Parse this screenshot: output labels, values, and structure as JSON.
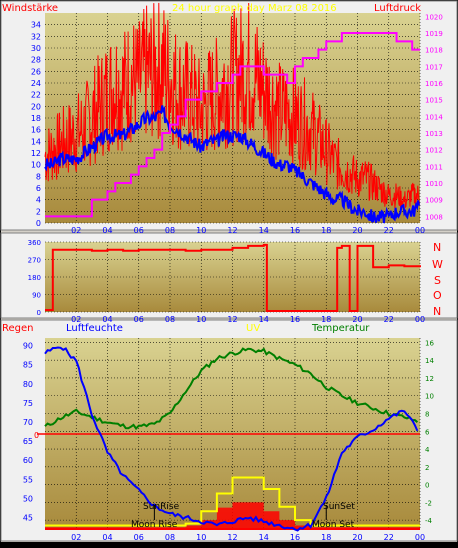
{
  "colors": {
    "frame_bg": "#d4d0c8",
    "plot_bg_top": "#d9d291",
    "plot_bg_bottom": "#a88a3c",
    "grid": "#000000",
    "wind_speed": "#ff0000",
    "wind_avg": "#0000ff",
    "pressure": "#ff00ff",
    "direction": "#ff0000",
    "humidity": "#0000ff",
    "temperature": "#007f00",
    "uv": "#ffff00",
    "solar": "#ff0000",
    "rain": "#ff0000",
    "label_left_top": "#ff0000",
    "label_uv": "#ffff00",
    "label_temp": "#007f00",
    "label_hum": "#0000ff",
    "axis_left": "#0000ff",
    "axis_right": "#007f00",
    "axis_right_top": "#ff00ff"
  },
  "header": {
    "title": "24 hour graph day   Marz 08 2016",
    "left_label": "Windstärke",
    "right_label": "Luftdruck"
  },
  "xticks": [
    "02",
    "04",
    "06",
    "08",
    "10",
    "12",
    "14",
    "16",
    "18",
    "20",
    "22",
    "00"
  ],
  "panel_wind": {
    "y_left_ticks": [
      "0",
      "2",
      "4",
      "6",
      "8",
      "10",
      "12",
      "14",
      "16",
      "18",
      "20",
      "22",
      "24",
      "26",
      "28",
      "30",
      "32",
      "34"
    ],
    "y_right_ticks": [
      "1008",
      "1009",
      "1010",
      "1011",
      "1012",
      "1013",
      "1014",
      "1015",
      "1016",
      "1017",
      "1018",
      "1019",
      "1020"
    ]
  },
  "panel_direction": {
    "y_left_ticks": [
      "0",
      "90",
      "180",
      "270",
      "360"
    ],
    "right_labels": [
      "N",
      "W",
      "S",
      "O",
      "N"
    ]
  },
  "panel_bottom": {
    "labels": {
      "rain": "Regen",
      "humidity": "Luftfeuchte",
      "uv": "UV",
      "temperature": "Temperatur"
    },
    "y_left_ticks": [
      "45",
      "50",
      "55",
      "60",
      "65",
      "70",
      "75",
      "80",
      "85",
      "90"
    ],
    "rain_zero": "0",
    "y_right_ticks": [
      "-4",
      "-2",
      "0",
      "2",
      "4",
      "6",
      "8",
      "10",
      "12",
      "14",
      "16"
    ],
    "annotations": {
      "sunrise": "SunRise",
      "moonrise": "Moon Rise",
      "sunset": "SunSet",
      "moonset": "Moon Set"
    }
  },
  "chart_data": [
    {
      "type": "line",
      "panel": "wind",
      "x_hours": [
        0,
        0.5,
        1,
        1.5,
        2,
        2.5,
        3,
        3.5,
        4,
        4.5,
        5,
        5.5,
        6,
        6.5,
        7,
        7.5,
        8,
        8.5,
        9,
        9.5,
        10,
        10.5,
        11,
        11.5,
        12,
        12.5,
        13,
        13.5,
        14,
        14.5,
        15,
        15.5,
        16,
        16.5,
        17,
        17.5,
        18,
        18.5,
        19,
        19.5,
        20,
        20.5,
        21,
        21.5,
        22,
        22.5,
        23,
        23.5,
        24
      ],
      "series": [
        {
          "name": "Windstärke",
          "axis": "left",
          "values": [
            12,
            13,
            14,
            15,
            16,
            17,
            19,
            21,
            23,
            25,
            24,
            26,
            25,
            27,
            27,
            28,
            26,
            24,
            23,
            22,
            20,
            22,
            23,
            25,
            26,
            27,
            28,
            26,
            24,
            22,
            20,
            20,
            19,
            18,
            17,
            15,
            13,
            11,
            10,
            9,
            8,
            8,
            7,
            6,
            5,
            5,
            4,
            5,
            5
          ]
        },
        {
          "name": "Windstärke Mittel",
          "axis": "left",
          "values": [
            10,
            10,
            11,
            11,
            11,
            12,
            13,
            14,
            15,
            15,
            15,
            16,
            17,
            18,
            18,
            19,
            17,
            16,
            15,
            14,
            13,
            14,
            14,
            15,
            15,
            15,
            14,
            13,
            12,
            11,
            10,
            10,
            9,
            8,
            7,
            6,
            5,
            4,
            4,
            3,
            2,
            2,
            1,
            1,
            1,
            2,
            2,
            2,
            3
          ]
        },
        {
          "name": "Luftdruck",
          "axis": "right",
          "values": [
            1008.2,
            1008.2,
            1008.2,
            1008.2,
            1008.2,
            1008.2,
            1008.2,
            1008.8,
            1009.2,
            1009.4,
            1009.8,
            1010.2,
            1010.6,
            1011.2,
            1011.6,
            1012.2,
            1012.8,
            1013.6,
            1014.2,
            1014.8,
            1015.2,
            1015.4,
            1015.6,
            1015.9,
            1016.2,
            1016.6,
            1016.9,
            1017.0,
            1016.8,
            1016.6,
            1016.5,
            1016.3,
            1016.1,
            1016.8,
            1017.3,
            1017.6,
            1018.0,
            1018.4,
            1018.7,
            1018.8,
            1019.0,
            1019.1,
            1019.1,
            1019.0,
            1018.9,
            1018.8,
            1018.6,
            1018.4,
            1018.2
          ]
        }
      ],
      "ylim_left": [
        0,
        36
      ],
      "ylim_right": [
        1007.6,
        1020.2
      ]
    },
    {
      "type": "line",
      "panel": "direction",
      "x_hours": [
        0,
        0.5,
        1,
        2,
        3,
        4,
        5,
        6,
        7,
        8,
        9,
        10,
        11,
        12,
        13,
        14,
        14.2,
        15,
        16,
        17,
        18,
        18.7,
        19,
        19.5,
        20,
        21,
        22,
        23,
        24
      ],
      "series": [
        {
          "name": "Windrichtung",
          "values": [
            10,
            320,
            320,
            320,
            315,
            320,
            315,
            320,
            320,
            320,
            315,
            320,
            320,
            330,
            340,
            345,
            5,
            5,
            5,
            5,
            5,
            330,
            340,
            5,
            340,
            230,
            240,
            235,
            230
          ]
        }
      ],
      "ylim": [
        0,
        360
      ]
    },
    {
      "type": "line",
      "panel": "bottom",
      "x_hours": [
        0,
        1,
        2,
        3,
        4,
        5,
        6,
        7,
        8,
        9,
        10,
        11,
        12,
        13,
        14,
        15,
        16,
        17,
        18,
        19,
        20,
        21,
        22,
        23,
        24
      ],
      "series": [
        {
          "name": "Luftfeuchte",
          "axis": "left",
          "values": [
            88,
            90,
            86,
            72,
            62,
            56,
            52,
            48,
            46,
            45,
            44,
            43,
            44,
            45,
            44,
            43,
            42,
            43,
            50,
            62,
            66,
            68,
            71,
            73,
            67
          ]
        },
        {
          "name": "Temperatur",
          "axis": "right",
          "values": [
            6.5,
            7.5,
            8.2,
            7.6,
            7.0,
            6.6,
            6.5,
            6.8,
            8.0,
            10.5,
            12.8,
            14.2,
            14.8,
            15.2,
            15.0,
            14.2,
            13.5,
            12.5,
            11.0,
            10.0,
            9.2,
            8.6,
            8.0,
            7.6,
            7.0
          ]
        },
        {
          "name": "UV",
          "axis": "right",
          "values": [
            -4.6,
            -4.6,
            -4.6,
            -4.6,
            -4.6,
            -4.6,
            -4.6,
            -4.6,
            -4.6,
            -4.4,
            -3.0,
            -1.0,
            0.8,
            0.8,
            -0.5,
            -2.5,
            -4.0,
            -4.6,
            -4.6,
            -4.6,
            -4.6,
            -4.6,
            -4.6,
            -4.6,
            -4.6
          ]
        },
        {
          "name": "Solar",
          "axis": "right",
          "values": [
            -4.8,
            -4.8,
            -4.8,
            -4.8,
            -4.8,
            -4.8,
            -4.8,
            -4.8,
            -4.8,
            -4.6,
            -4.0,
            -2.6,
            -2.0,
            -2.0,
            -3.0,
            -4.0,
            -4.6,
            -4.8,
            -4.8,
            -4.8,
            -4.8,
            -4.8,
            -4.8,
            -4.8,
            -4.8
          ]
        }
      ],
      "ylim_left": [
        42,
        92
      ],
      "ylim_right": [
        -5,
        16.5
      ],
      "rain": 0
    }
  ]
}
